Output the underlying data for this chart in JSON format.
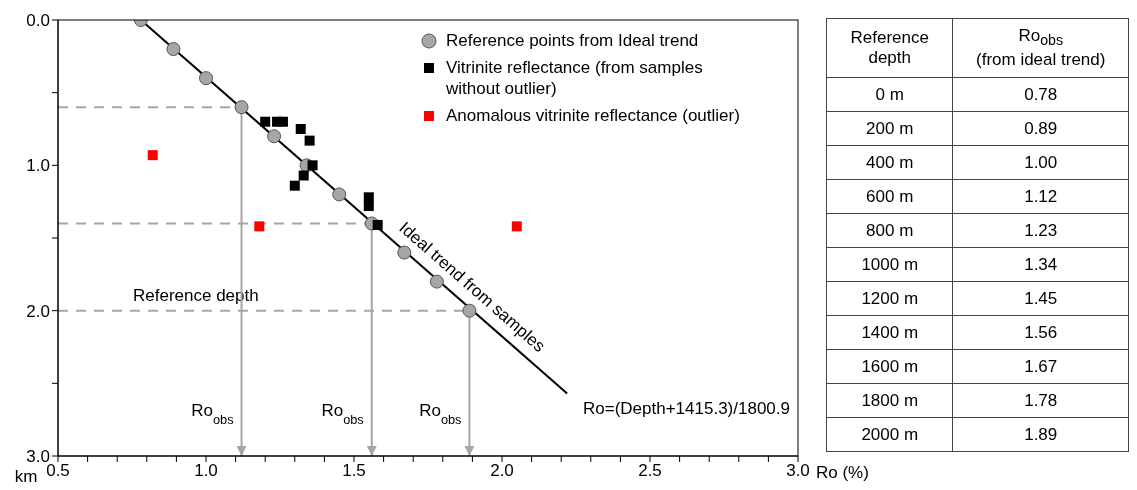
{
  "chart_data": {
    "type": "scatter",
    "xlabel": "Ro (%)",
    "ylabel": "km",
    "xlim": [
      0.5,
      3.0
    ],
    "ylim": [
      3.0,
      0.0
    ],
    "xticks": [
      {
        "value": 0.5,
        "label": "0.5"
      },
      {
        "value": 0.6,
        "label": null
      },
      {
        "value": 0.7,
        "label": null
      },
      {
        "value": 0.8,
        "label": null
      },
      {
        "value": 0.9,
        "label": null
      },
      {
        "value": 1.0,
        "label": "1.0"
      },
      {
        "value": 1.1,
        "label": null
      },
      {
        "value": 1.2,
        "label": null
      },
      {
        "value": 1.3,
        "label": null
      },
      {
        "value": 1.4,
        "label": null
      },
      {
        "value": 1.5,
        "label": "1.5"
      },
      {
        "value": 1.6,
        "label": null
      },
      {
        "value": 1.7,
        "label": null
      },
      {
        "value": 1.8,
        "label": null
      },
      {
        "value": 1.9,
        "label": null
      },
      {
        "value": 2.0,
        "label": "2.0"
      },
      {
        "value": 2.1,
        "label": null
      },
      {
        "value": 2.2,
        "label": null
      },
      {
        "value": 2.3,
        "label": null
      },
      {
        "value": 2.4,
        "label": null
      },
      {
        "value": 2.5,
        "label": "2.5"
      },
      {
        "value": 2.6,
        "label": null
      },
      {
        "value": 2.7,
        "label": null
      },
      {
        "value": 2.8,
        "label": null
      },
      {
        "value": 2.9,
        "label": null
      },
      {
        "value": 3.0,
        "label": "3.0"
      }
    ],
    "yticks": [
      {
        "value": 0,
        "label": "0.0"
      },
      {
        "value": 0.5,
        "label": null
      },
      {
        "value": 1,
        "label": "1.0"
      },
      {
        "value": 1.5,
        "label": null
      },
      {
        "value": 2,
        "label": "2.0"
      },
      {
        "value": 2.5,
        "label": null
      },
      {
        "value": 3,
        "label": "3.0"
      }
    ],
    "legend": "top right",
    "series": [
      {
        "name": "Reference points from Ideal trend",
        "type": "scatter",
        "marker": "circle",
        "color": "#a6a6a6",
        "x": [
          0.78,
          0.89,
          1.0,
          1.12,
          1.23,
          1.34,
          1.45,
          1.56,
          1.67,
          1.78,
          1.89
        ],
        "values": [
          0,
          0.2,
          0.4,
          0.6,
          0.8,
          1.0,
          1.2,
          1.4,
          1.6,
          1.8,
          2.0
        ]
      },
      {
        "name": "Vitrinite reflectance (from samples without outlier)",
        "type": "scatter",
        "marker": "square",
        "color": "#000000",
        "x": [
          1.2,
          1.24,
          1.26,
          1.32,
          1.35,
          1.36,
          1.33,
          1.3,
          1.55,
          1.55,
          1.58
        ],
        "values": [
          0.7,
          0.7,
          0.7,
          0.75,
          0.83,
          1.0,
          1.07,
          1.14,
          1.22,
          1.28,
          1.41
        ]
      },
      {
        "name": "Anomalous vitrinite reflectance (outlier)",
        "type": "scatter",
        "marker": "square",
        "color": "#ff0000",
        "x": [
          0.82,
          1.18,
          2.05
        ],
        "values": [
          0.93,
          1.42,
          1.42
        ]
      },
      {
        "name": "Ideal trend from samples",
        "type": "line",
        "color": "#000000",
        "x": [
          0.78,
          2.22
        ],
        "values": [
          0,
          2.57
        ]
      }
    ],
    "ref_lines": [
      {
        "axis": "y",
        "value": 0.6,
        "color": "#a6a6a6",
        "line_style": "dashed"
      },
      {
        "axis": "y",
        "value": 1.4,
        "color": "#a6a6a6",
        "line_style": "dashed"
      },
      {
        "axis": "y",
        "value": 2.0,
        "color": "#a6a6a6",
        "line_style": "dashed",
        "label": "Reference depth"
      },
      {
        "axis": "x",
        "value": 1.12,
        "color": "#a6a6a6",
        "line_style": "solid",
        "label": "Ro$_{obs}$"
      },
      {
        "axis": "x",
        "value": 1.56,
        "color": "#a6a6a6",
        "line_style": "solid",
        "label": "Ro$_{obs}$"
      },
      {
        "axis": "x",
        "value": 1.89,
        "color": "#a6a6a6",
        "line_style": "solid",
        "label": "Ro$_{obs}$"
      }
    ],
    "annotations": [
      "Ro=(Depth+1415.3)/1800.9",
      "Reference depth",
      "Ro$_{obs}$\n(from ideal trend)",
      "0 m",
      "0.78",
      "200 m",
      "0.89",
      "400 m",
      "1.00",
      "600 m",
      "1.12",
      "800 m",
      "1.23",
      "1000 m",
      "1.34",
      "1200 m",
      "1.45",
      "1400 m",
      "1.56",
      "1600 m",
      "1.67",
      "1800 m",
      "1.78",
      "2000 m",
      "1.89"
    ]
  }
}
